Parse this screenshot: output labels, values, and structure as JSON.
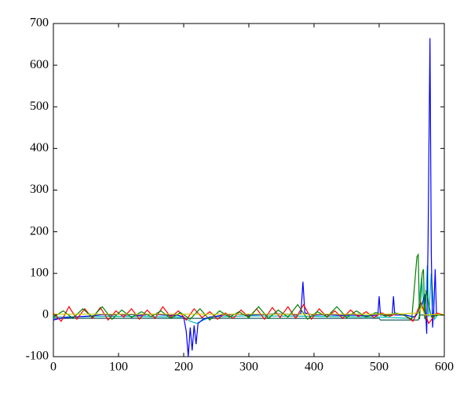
{
  "chart_data": {
    "type": "line",
    "xlim": [
      0,
      600
    ],
    "ylim": [
      -100,
      700
    ],
    "xticks": [
      0,
      100,
      200,
      300,
      400,
      500,
      600
    ],
    "yticks": [
      -100,
      0,
      100,
      200,
      300,
      400,
      500,
      600,
      700
    ],
    "grid": false,
    "series": [
      {
        "color": "#00bfbf",
        "x": [
          0,
          100,
          200,
          210,
          220,
          240,
          300,
          400,
          500,
          550,
          560,
          565,
          570,
          574,
          576,
          580,
          585,
          590,
          600
        ],
        "values": [
          -5,
          -3,
          -5,
          -15,
          -20,
          -5,
          -2,
          -3,
          -5,
          -8,
          5,
          90,
          -10,
          120,
          -5,
          100,
          -10,
          0,
          0
        ]
      },
      {
        "color": "#1f5f5f",
        "x": [
          0,
          200,
          500,
          502,
          560,
          562,
          600
        ],
        "values": [
          -8,
          -8,
          -8,
          -12,
          -12,
          0,
          0
        ]
      },
      {
        "color": "#0000ff",
        "x": [
          0,
          10,
          20,
          30,
          40,
          50,
          60,
          70,
          80,
          90,
          100,
          110,
          120,
          130,
          140,
          150,
          160,
          170,
          180,
          190,
          200,
          204,
          207,
          210,
          213,
          216,
          219,
          222,
          226,
          230,
          240,
          250,
          260,
          280,
          300,
          320,
          340,
          360,
          375,
          380,
          383,
          386,
          400,
          420,
          440,
          460,
          480,
          498,
          500,
          502,
          520,
          522,
          524,
          540,
          555,
          565,
          570,
          573,
          575,
          578,
          580,
          582,
          584,
          586,
          588,
          595,
          600
        ],
        "values": [
          -12,
          -8,
          -6,
          -5,
          -4,
          -3,
          -2,
          0,
          1,
          0,
          2,
          0,
          1,
          -1,
          0,
          2,
          1,
          0,
          -1,
          0,
          -5,
          -40,
          -100,
          -30,
          -85,
          -25,
          -70,
          -20,
          -15,
          -10,
          -5,
          -3,
          0,
          2,
          0,
          1,
          3,
          2,
          0,
          5,
          80,
          5,
          0,
          1,
          -1,
          0,
          -2,
          0,
          45,
          0,
          0,
          45,
          0,
          0,
          -5,
          20,
          50,
          -45,
          170,
          665,
          150,
          -30,
          20,
          110,
          0,
          0,
          0
        ]
      },
      {
        "color": "#ff0000",
        "x": [
          0,
          12,
          24,
          36,
          48,
          60,
          72,
          84,
          96,
          108,
          120,
          132,
          144,
          156,
          168,
          180,
          192,
          204,
          216,
          228,
          240,
          252,
          264,
          276,
          288,
          300,
          312,
          324,
          336,
          348,
          360,
          372,
          384,
          396,
          408,
          420,
          432,
          444,
          456,
          468,
          480,
          492,
          504,
          516,
          528,
          540,
          552,
          564,
          576,
          588,
          600
        ],
        "values": [
          5,
          -15,
          20,
          -10,
          15,
          -8,
          18,
          -12,
          10,
          -5,
          15,
          -10,
          12,
          -8,
          20,
          -5,
          10,
          -12,
          15,
          -6,
          8,
          -10,
          5,
          -8,
          12,
          -5,
          15,
          -10,
          18,
          -6,
          20,
          -8,
          25,
          -10,
          15,
          -5,
          10,
          -8,
          12,
          -4,
          8,
          -6,
          5,
          -3,
          4,
          -2,
          -15,
          30,
          -20,
          5,
          0
        ]
      },
      {
        "color": "#008000",
        "x": [
          0,
          15,
          30,
          45,
          60,
          75,
          90,
          105,
          120,
          135,
          150,
          165,
          180,
          195,
          210,
          225,
          240,
          255,
          270,
          285,
          300,
          315,
          330,
          345,
          360,
          375,
          390,
          405,
          420,
          435,
          450,
          465,
          480,
          495,
          510,
          525,
          540,
          550,
          558,
          560,
          562,
          566,
          568,
          570,
          572,
          580,
          590,
          600
        ],
        "values": [
          -5,
          10,
          -8,
          15,
          -5,
          20,
          -10,
          12,
          -6,
          8,
          -4,
          10,
          -8,
          6,
          -10,
          15,
          -12,
          10,
          -5,
          8,
          -6,
          20,
          -8,
          12,
          -5,
          25,
          -10,
          8,
          -4,
          20,
          -6,
          10,
          -5,
          6,
          -3,
          5,
          -2,
          -10,
          140,
          145,
          -10,
          100,
          110,
          -10,
          60,
          -5,
          0,
          0
        ]
      },
      {
        "color": "#cccc00",
        "x": [
          0,
          500,
          540,
          560,
          565,
          570,
          600
        ],
        "values": [
          2,
          2,
          3,
          5,
          20,
          0,
          2
        ]
      }
    ]
  }
}
